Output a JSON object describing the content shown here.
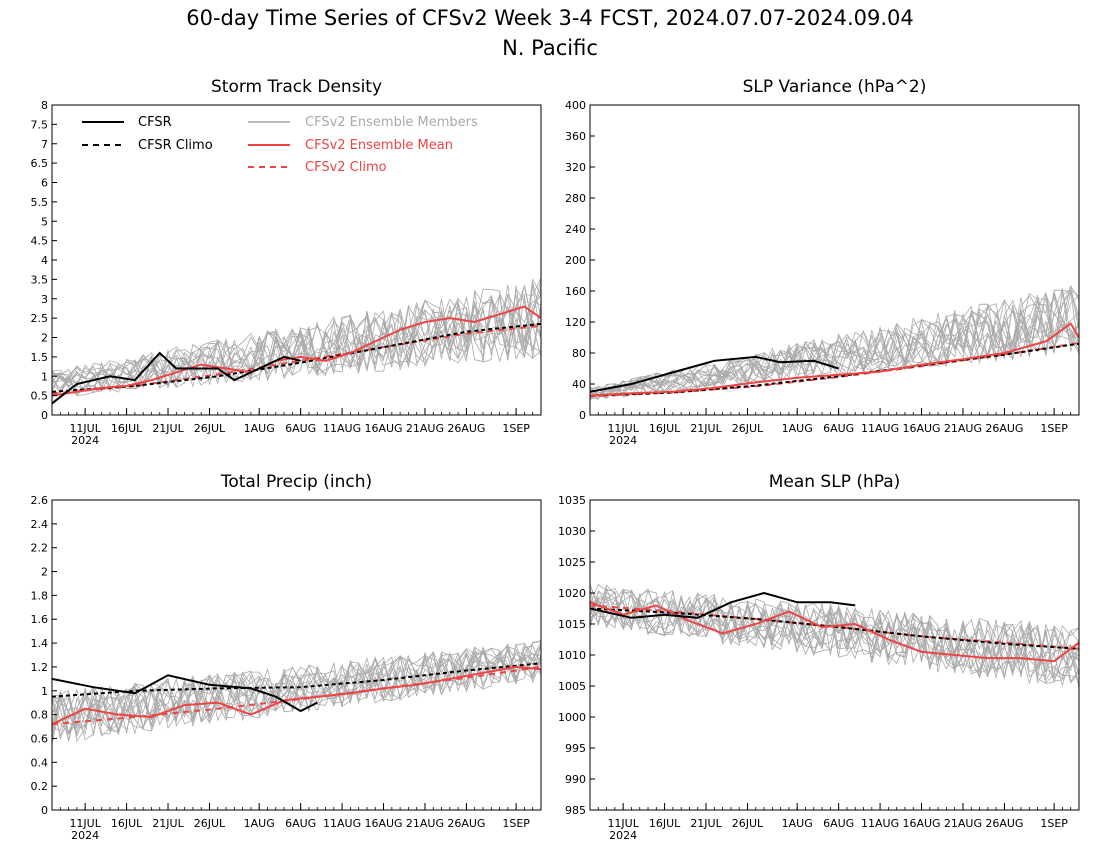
{
  "figure": {
    "title_line1": "60-day Time Series of CFSv2 Week 3-4 FCST, 2024.07.07-2024.09.04",
    "title_line2": "N. Pacific"
  },
  "legend": {
    "cfsr": "CFSR",
    "cfsr_climo": "CFSR Climo",
    "members": "CFSv2 Ensemble Members",
    "ens_mean": "CFSv2 Ensemble Mean",
    "cfsv2_climo": "CFSv2 Climo"
  },
  "colors": {
    "cfsr": "#000000",
    "cfsr_climo": "#000000",
    "members": "#a9a9a9",
    "ens_mean": "#ee4444",
    "cfsv2_climo": "#ee4444"
  },
  "x_axis": {
    "start_date": "2024-07-07",
    "end_date": "2024-09-04",
    "tick_labels": [
      "11JUL",
      "16JUL",
      "21JUL",
      "26JUL",
      "1AUG",
      "6AUG",
      "11AUG",
      "16AUG",
      "21AUG",
      "26AUG",
      "1SEP"
    ],
    "year_label": "2024"
  },
  "chart_data": [
    {
      "type": "line",
      "title": "Storm Track Density",
      "ylim": [
        0,
        8
      ],
      "yticks": [
        "0",
        "0.5",
        "1",
        "1.5",
        "2",
        "2.5",
        "3",
        "3.5",
        "4",
        "4.5",
        "5",
        "5.5",
        "6",
        "6.5",
        "7",
        "7.5",
        "8"
      ],
      "legend_location": "top-left",
      "series": [
        {
          "name": "CFSR",
          "x": [
            "2024-07-07",
            "2024-07-10",
            "2024-07-14",
            "2024-07-17",
            "2024-07-20",
            "2024-07-22",
            "2024-07-27",
            "2024-07-29",
            "2024-08-01",
            "2024-08-04",
            "2024-08-06"
          ],
          "y": [
            0.3,
            0.8,
            1.0,
            0.9,
            1.6,
            1.2,
            1.2,
            0.9,
            1.2,
            1.5,
            1.4
          ]
        },
        {
          "name": "CFSR Climo",
          "x": [
            "2024-07-07",
            "2024-07-17",
            "2024-07-27",
            "2024-08-06",
            "2024-08-16",
            "2024-08-26",
            "2024-09-04"
          ],
          "y": [
            0.6,
            0.75,
            1.0,
            1.35,
            1.75,
            2.15,
            2.35
          ]
        },
        {
          "name": "CFSv2 Ensemble Mean",
          "x": [
            "2024-07-07",
            "2024-07-10",
            "2024-07-13",
            "2024-07-16",
            "2024-07-19",
            "2024-07-22",
            "2024-07-25",
            "2024-07-28",
            "2024-07-31",
            "2024-08-03",
            "2024-08-06",
            "2024-08-09",
            "2024-08-12",
            "2024-08-15",
            "2024-08-18",
            "2024-08-21",
            "2024-08-24",
            "2024-08-27",
            "2024-08-30",
            "2024-09-02",
            "2024-09-04"
          ],
          "y": [
            0.5,
            0.6,
            0.7,
            0.75,
            0.9,
            1.1,
            1.3,
            1.2,
            1.1,
            1.4,
            1.5,
            1.4,
            1.6,
            1.9,
            2.2,
            2.4,
            2.5,
            2.4,
            2.6,
            2.8,
            2.5
          ]
        },
        {
          "name": "CFSv2 Climo",
          "x": [
            "2024-07-07",
            "2024-07-17",
            "2024-07-27",
            "2024-08-06",
            "2024-08-16",
            "2024-08-26",
            "2024-09-04"
          ],
          "y": [
            0.55,
            0.75,
            1.05,
            1.4,
            1.75,
            2.1,
            2.3
          ]
        }
      ],
      "members_envelope": {
        "low": [
          0.3,
          1.0
        ],
        "high": [
          1.3,
          4.0
        ]
      }
    },
    {
      "type": "line",
      "title": "SLP Variance (hPa^2)",
      "ylim": [
        0,
        400
      ],
      "yticks": [
        "0",
        "40",
        "80",
        "120",
        "160",
        "200",
        "240",
        "280",
        "320",
        "360",
        "400"
      ],
      "series": [
        {
          "name": "CFSR",
          "x": [
            "2024-07-07",
            "2024-07-12",
            "2024-07-17",
            "2024-07-22",
            "2024-07-27",
            "2024-07-30",
            "2024-08-03",
            "2024-08-06"
          ],
          "y": [
            30,
            40,
            55,
            70,
            75,
            68,
            70,
            60
          ]
        },
        {
          "name": "CFSR Climo",
          "x": [
            "2024-07-07",
            "2024-07-17",
            "2024-07-27",
            "2024-08-06",
            "2024-08-16",
            "2024-08-26",
            "2024-09-04"
          ],
          "y": [
            25,
            29,
            38,
            50,
            64,
            78,
            92
          ]
        },
        {
          "name": "CFSv2 Ensemble Mean",
          "x": [
            "2024-07-07",
            "2024-07-12",
            "2024-07-17",
            "2024-07-22",
            "2024-07-27",
            "2024-08-01",
            "2024-08-06",
            "2024-08-11",
            "2024-08-16",
            "2024-08-21",
            "2024-08-26",
            "2024-08-31",
            "2024-09-03",
            "2024-09-04"
          ],
          "y": [
            25,
            28,
            30,
            35,
            42,
            48,
            52,
            56,
            65,
            72,
            80,
            95,
            118,
            100
          ]
        },
        {
          "name": "CFSv2 Climo",
          "x": [
            "2024-07-07",
            "2024-07-17",
            "2024-07-27",
            "2024-08-06",
            "2024-08-16",
            "2024-08-26",
            "2024-09-04"
          ],
          "y": [
            24,
            29,
            37,
            49,
            63,
            78,
            93
          ]
        }
      ],
      "members_envelope": {
        "low": [
          15,
          60
        ],
        "high": [
          40,
          190
        ]
      }
    },
    {
      "type": "line",
      "title": "Total Precip (inch)",
      "ylim": [
        0,
        2.6
      ],
      "yticks": [
        "0",
        "0.2",
        "0.4",
        "0.6",
        "0.8",
        "1",
        "1.2",
        "1.4",
        "1.6",
        "1.8",
        "2",
        "2.2",
        "2.4",
        "2.6"
      ],
      "series": [
        {
          "name": "CFSR",
          "x": [
            "2024-07-07",
            "2024-07-12",
            "2024-07-17",
            "2024-07-21",
            "2024-07-26",
            "2024-07-31",
            "2024-08-03",
            "2024-08-06",
            "2024-08-08"
          ],
          "y": [
            1.1,
            1.03,
            0.98,
            1.13,
            1.05,
            1.02,
            0.95,
            0.83,
            0.9
          ]
        },
        {
          "name": "CFSR Climo",
          "x": [
            "2024-07-07",
            "2024-07-17",
            "2024-07-27",
            "2024-08-06",
            "2024-08-16",
            "2024-08-26",
            "2024-09-04"
          ],
          "y": [
            0.95,
            1.0,
            1.02,
            1.03,
            1.09,
            1.17,
            1.23
          ]
        },
        {
          "name": "CFSv2 Ensemble Mean",
          "x": [
            "2024-07-07",
            "2024-07-11",
            "2024-07-15",
            "2024-07-19",
            "2024-07-23",
            "2024-07-27",
            "2024-07-31",
            "2024-08-04",
            "2024-08-08",
            "2024-08-12",
            "2024-08-16",
            "2024-08-20",
            "2024-08-24",
            "2024-08-28",
            "2024-09-01",
            "2024-09-04"
          ],
          "y": [
            0.72,
            0.85,
            0.8,
            0.78,
            0.88,
            0.9,
            0.8,
            0.92,
            0.95,
            0.98,
            1.02,
            1.05,
            1.1,
            1.15,
            1.2,
            1.18
          ]
        },
        {
          "name": "CFSv2 Climo",
          "x": [
            "2024-07-07",
            "2024-07-17",
            "2024-07-27",
            "2024-08-06",
            "2024-08-16",
            "2024-08-26",
            "2024-09-04"
          ],
          "y": [
            0.72,
            0.78,
            0.85,
            0.93,
            1.02,
            1.11,
            1.2
          ]
        }
      ],
      "members_envelope": {
        "low": [
          0.45,
          1.0
        ],
        "high": [
          1.1,
          1.5
        ]
      }
    },
    {
      "type": "line",
      "title": "Mean SLP (hPa)",
      "ylim": [
        985,
        1035
      ],
      "yticks": [
        "985",
        "990",
        "995",
        "1000",
        "1005",
        "1010",
        "1015",
        "1020",
        "1025",
        "1030",
        "1035"
      ],
      "series": [
        {
          "name": "CFSR",
          "x": [
            "2024-07-07",
            "2024-07-12",
            "2024-07-16",
            "2024-07-20",
            "2024-07-24",
            "2024-07-28",
            "2024-08-01",
            "2024-08-05",
            "2024-08-08"
          ],
          "y": [
            1017.5,
            1016,
            1016.5,
            1016,
            1018.5,
            1020,
            1018.5,
            1018.5,
            1018
          ]
        },
        {
          "name": "CFSR Climo",
          "x": [
            "2024-07-07",
            "2024-07-17",
            "2024-07-27",
            "2024-08-06",
            "2024-08-16",
            "2024-08-26",
            "2024-09-04"
          ],
          "y": [
            1017.5,
            1016.8,
            1015.8,
            1014.5,
            1013,
            1011.8,
            1011
          ]
        },
        {
          "name": "CFSv2 Ensemble Mean",
          "x": [
            "2024-07-07",
            "2024-07-11",
            "2024-07-15",
            "2024-07-19",
            "2024-07-23",
            "2024-07-27",
            "2024-07-31",
            "2024-08-04",
            "2024-08-08",
            "2024-08-12",
            "2024-08-16",
            "2024-08-20",
            "2024-08-24",
            "2024-08-28",
            "2024-09-01",
            "2024-09-04"
          ],
          "y": [
            1018.5,
            1016.5,
            1018,
            1015.5,
            1013.5,
            1015,
            1017,
            1014.5,
            1015,
            1012.5,
            1010.5,
            1010,
            1009.5,
            1009.5,
            1009,
            1012
          ]
        },
        {
          "name": "CFSv2 Climo",
          "x": [
            "2024-07-07",
            "2024-07-17",
            "2024-07-27",
            "2024-08-06",
            "2024-08-16",
            "2024-08-26",
            "2024-09-04"
          ],
          "y": [
            1018,
            1017,
            1015.8,
            1014.5,
            1013,
            1012,
            1011
          ]
        }
      ],
      "members_envelope": {
        "low": [
          1013,
          1002
        ],
        "high": [
          1023,
          1017
        ]
      }
    }
  ]
}
